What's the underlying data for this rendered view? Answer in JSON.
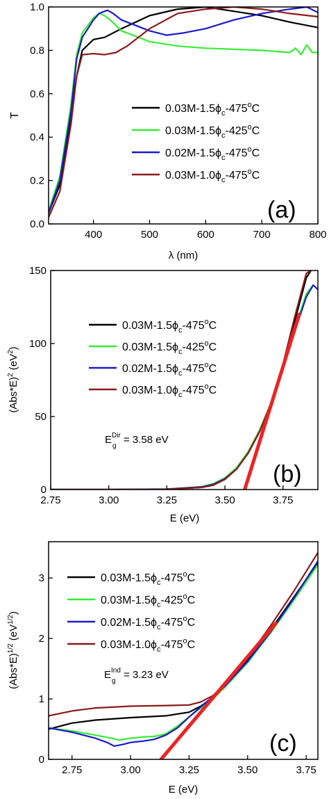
{
  "chart_data": [
    {
      "type": "line",
      "panel_label": "(a)",
      "xlabel": "λ (nm)",
      "ylabel": "T",
      "xlim": [
        320,
        800
      ],
      "ylim": [
        0.0,
        1.0
      ],
      "xticks": [
        400,
        500,
        600,
        700,
        800
      ],
      "yticks": [
        0.0,
        0.2,
        0.4,
        0.6,
        0.8,
        1.0
      ],
      "xtick_labels": [
        "400",
        "500",
        "600",
        "700",
        "800"
      ],
      "ytick_labels": [
        "0.0",
        "0.2",
        "0.4",
        "0.6",
        "0.8",
        "1.0"
      ],
      "legend": {
        "placement": "center-right"
      },
      "series": [
        {
          "name": "0.03M-1.5ϕc-475°C",
          "color": "#000000",
          "x": [
            320,
            340,
            360,
            370,
            380,
            400,
            420,
            450,
            500,
            550,
            600,
            650,
            700,
            750,
            800
          ],
          "y": [
            0.05,
            0.18,
            0.5,
            0.68,
            0.8,
            0.85,
            0.86,
            0.9,
            0.96,
            0.99,
            1.0,
            0.98,
            0.96,
            0.93,
            0.905
          ]
        },
        {
          "name": "0.03M-1.5ϕc-425°C",
          "color": "#33ee33",
          "x": [
            320,
            340,
            360,
            370,
            380,
            400,
            410,
            420,
            430,
            450,
            500,
            550,
            600,
            650,
            700,
            750,
            760,
            770,
            780,
            790,
            800
          ],
          "y": [
            0.06,
            0.22,
            0.55,
            0.78,
            0.88,
            0.95,
            0.97,
            0.96,
            0.94,
            0.89,
            0.84,
            0.82,
            0.81,
            0.805,
            0.8,
            0.79,
            0.81,
            0.78,
            0.825,
            0.79,
            0.79
          ]
        },
        {
          "name": "0.02M-1.5ϕc-475°C",
          "color": "#1a1acc",
          "x": [
            320,
            340,
            360,
            370,
            380,
            400,
            410,
            420,
            425,
            435,
            450,
            500,
            530,
            560,
            600,
            650,
            700,
            750,
            780,
            800
          ],
          "y": [
            0.05,
            0.2,
            0.52,
            0.76,
            0.86,
            0.94,
            0.97,
            0.98,
            0.985,
            0.97,
            0.94,
            0.89,
            0.87,
            0.88,
            0.9,
            0.94,
            0.97,
            0.99,
            1.0,
            0.975
          ]
        },
        {
          "name": "0.03M-1.0ϕc-475°C",
          "color": "#8b1a1a",
          "x": [
            320,
            340,
            360,
            370,
            380,
            400,
            420,
            440,
            460,
            500,
            550,
            600,
            650,
            700,
            750,
            800
          ],
          "y": [
            0.03,
            0.15,
            0.46,
            0.68,
            0.78,
            0.785,
            0.78,
            0.79,
            0.82,
            0.9,
            0.97,
            0.99,
            1.0,
            0.99,
            0.97,
            0.955
          ]
        }
      ]
    },
    {
      "type": "line",
      "panel_label": "(b)",
      "xlabel": "E (eV)",
      "ylabel": "(Abs*E)² (eV²)",
      "xlim": [
        2.75,
        3.9
      ],
      "ylim": [
        0,
        150
      ],
      "xticks": [
        2.75,
        3.0,
        3.25,
        3.5,
        3.75
      ],
      "yticks": [
        0,
        50,
        100,
        150
      ],
      "xtick_labels": [
        "2.75",
        "3.00",
        "3.25",
        "3.50",
        "3.75"
      ],
      "ytick_labels": [
        "0",
        "50",
        "100",
        "150"
      ],
      "annotation": {
        "main": "E",
        "sub": "g",
        "sup": "Dir",
        "rest": " = 3.58 eV"
      },
      "legend": {
        "placement": "top-left"
      },
      "fit_line": {
        "color": "#ee2222",
        "x": [
          3.585,
          3.82
        ],
        "y": [
          0,
          120
        ]
      },
      "series": [
        {
          "name": "0.03M-1.5ϕc-475°C",
          "color": "#000000",
          "x": [
            2.75,
            3.0,
            3.25,
            3.4,
            3.45,
            3.5,
            3.55,
            3.6,
            3.65,
            3.7,
            3.75,
            3.8,
            3.85,
            3.87
          ],
          "y": [
            0,
            0,
            0.2,
            1.5,
            3,
            7,
            14,
            25,
            40,
            60,
            85,
            115,
            145,
            150
          ]
        },
        {
          "name": "0.03M-1.5ϕc-425°C",
          "color": "#33ee33",
          "x": [
            2.75,
            3.0,
            3.25,
            3.4,
            3.45,
            3.5,
            3.55,
            3.6,
            3.65,
            3.7,
            3.75,
            3.8,
            3.85,
            3.88
          ],
          "y": [
            0,
            0,
            0.3,
            2,
            4,
            8,
            15,
            26,
            41,
            60,
            84,
            110,
            134,
            140
          ]
        },
        {
          "name": "0.02M-1.5ϕc-475°C",
          "color": "#1a1acc",
          "x": [
            2.75,
            3.0,
            3.25,
            3.4,
            3.45,
            3.5,
            3.55,
            3.6,
            3.65,
            3.7,
            3.75,
            3.8,
            3.85,
            3.88,
            3.9
          ],
          "y": [
            0,
            0,
            0.3,
            1.8,
            3.5,
            7.5,
            14,
            25,
            40,
            59,
            83,
            108,
            132,
            140,
            137
          ]
        },
        {
          "name": "0.03M-1.0ϕc-475°C",
          "color": "#8b1a1a",
          "x": [
            2.75,
            3.0,
            3.25,
            3.4,
            3.45,
            3.5,
            3.55,
            3.6,
            3.65,
            3.7,
            3.75,
            3.8,
            3.85,
            3.87
          ],
          "y": [
            0,
            0,
            0.2,
            1.5,
            3,
            7,
            14,
            25,
            40,
            60,
            86,
            118,
            148,
            150
          ]
        }
      ]
    },
    {
      "type": "line",
      "panel_label": "(c)",
      "xlabel": "E (eV)",
      "ylabel": "(Abs*E)^1/2 (eV^1/2)",
      "xlim": [
        2.65,
        3.8
      ],
      "ylim": [
        0,
        3.6
      ],
      "xticks": [
        2.75,
        3.0,
        3.25,
        3.5,
        3.75
      ],
      "yticks": [
        0,
        1,
        2,
        3
      ],
      "xtick_labels": [
        "2.75",
        "3.00",
        "3.25",
        "3.50",
        "3.75"
      ],
      "ytick_labels": [
        "0",
        "1",
        "2",
        "3"
      ],
      "annotation": {
        "main": "E",
        "sub": "g",
        "sup": "Ind",
        "rest": " = 3.23 eV"
      },
      "legend": {
        "placement": "top-left"
      },
      "fit_line": {
        "color": "#ee2222",
        "x": [
          3.13,
          3.62
        ],
        "y": [
          0,
          2.25
        ]
      },
      "series": [
        {
          "name": "0.03M-1.5ϕc-475°C",
          "color": "#000000",
          "x": [
            2.65,
            2.75,
            2.85,
            3.0,
            3.15,
            3.25,
            3.3,
            3.35,
            3.4,
            3.5,
            3.6,
            3.7,
            3.8
          ],
          "y": [
            0.5,
            0.6,
            0.65,
            0.69,
            0.72,
            0.78,
            0.88,
            1.02,
            1.2,
            1.65,
            2.15,
            2.7,
            3.25
          ]
        },
        {
          "name": "0.03M-1.5ϕc-425°C",
          "color": "#33ee33",
          "x": [
            2.65,
            2.75,
            2.85,
            2.92,
            2.95,
            3.0,
            3.05,
            3.1,
            3.15,
            3.2,
            3.25,
            3.3,
            3.35,
            3.4,
            3.5,
            3.6,
            3.7,
            3.8
          ],
          "y": [
            0.52,
            0.47,
            0.4,
            0.35,
            0.32,
            0.35,
            0.37,
            0.38,
            0.42,
            0.55,
            0.7,
            0.85,
            1.0,
            1.18,
            1.6,
            2.1,
            2.65,
            3.22
          ]
        },
        {
          "name": "0.02M-1.5ϕc-475°C",
          "color": "#1a1acc",
          "x": [
            2.65,
            2.75,
            2.85,
            2.9,
            2.93,
            2.97,
            3.0,
            3.05,
            3.1,
            3.15,
            3.2,
            3.25,
            3.3,
            3.35,
            3.4,
            3.5,
            3.6,
            3.7,
            3.8
          ],
          "y": [
            0.52,
            0.45,
            0.35,
            0.28,
            0.22,
            0.25,
            0.28,
            0.3,
            0.33,
            0.4,
            0.52,
            0.7,
            0.87,
            1.03,
            1.2,
            1.62,
            2.12,
            2.68,
            3.28
          ]
        },
        {
          "name": "0.03M-1.0ϕc-475°C",
          "color": "#8b1a1a",
          "x": [
            2.65,
            2.75,
            2.85,
            3.0,
            3.15,
            3.25,
            3.3,
            3.35,
            3.4,
            3.5,
            3.6,
            3.7,
            3.8
          ],
          "y": [
            0.72,
            0.8,
            0.85,
            0.88,
            0.89,
            0.9,
            0.95,
            1.05,
            1.22,
            1.68,
            2.22,
            2.8,
            3.42
          ]
        }
      ]
    }
  ]
}
